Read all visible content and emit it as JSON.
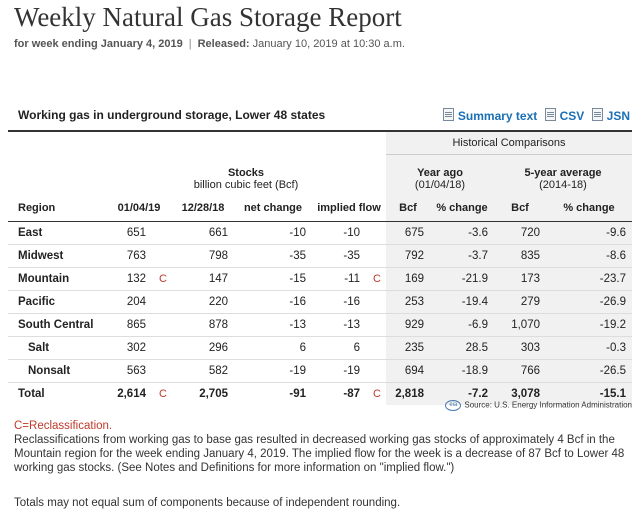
{
  "header": {
    "title": "Weekly Natural Gas Storage Report",
    "week_label": "for week ending January 4, 2019",
    "released_label": "Released:",
    "released_value": "January 10, 2019 at 10:30 a.m."
  },
  "panel": {
    "title": "Working gas in underground storage, Lower 48 states",
    "links": [
      "Summary text",
      "CSV",
      "JSN"
    ]
  },
  "table": {
    "historical_label": "Historical Comparisons",
    "stocks_title": "Stocks",
    "stocks_sub": "billion cubic feet (Bcf)",
    "yearago_title": "Year ago",
    "yearago_sub": "(01/04/18)",
    "fiveyr_title": "5-year average",
    "fiveyr_sub": "(2014-18)",
    "columns": [
      "Region",
      "01/04/19",
      "12/28/18",
      "net change",
      "implied flow",
      "Bcf",
      "% change",
      "Bcf",
      "% change"
    ],
    "rows": [
      {
        "region": "East",
        "cur": "651",
        "cur_r": "",
        "prev": "661",
        "net": "-10",
        "flow": "-10",
        "flow_r": "",
        "ya_bcf": "675",
        "ya_pct": "-3.6",
        "fy_bcf": "720",
        "fy_pct": "-9.6"
      },
      {
        "region": "Midwest",
        "cur": "763",
        "cur_r": "",
        "prev": "798",
        "net": "-35",
        "flow": "-35",
        "flow_r": "",
        "ya_bcf": "792",
        "ya_pct": "-3.7",
        "fy_bcf": "835",
        "fy_pct": "-8.6"
      },
      {
        "region": "Mountain",
        "cur": "132",
        "cur_r": "C",
        "prev": "147",
        "net": "-15",
        "flow": "-11",
        "flow_r": "C",
        "ya_bcf": "169",
        "ya_pct": "-21.9",
        "fy_bcf": "173",
        "fy_pct": "-23.7"
      },
      {
        "region": "Pacific",
        "cur": "204",
        "cur_r": "",
        "prev": "220",
        "net": "-16",
        "flow": "-16",
        "flow_r": "",
        "ya_bcf": "253",
        "ya_pct": "-19.4",
        "fy_bcf": "279",
        "fy_pct": "-26.9"
      },
      {
        "region": "South Central",
        "cur": "865",
        "cur_r": "",
        "prev": "878",
        "net": "-13",
        "flow": "-13",
        "flow_r": "",
        "ya_bcf": "929",
        "ya_pct": "-6.9",
        "fy_bcf": "1,070",
        "fy_pct": "-19.2"
      },
      {
        "region": "Salt",
        "cur": "302",
        "cur_r": "",
        "prev": "296",
        "net": "6",
        "flow": "6",
        "flow_r": "",
        "ya_bcf": "235",
        "ya_pct": "28.5",
        "fy_bcf": "303",
        "fy_pct": "-0.3"
      },
      {
        "region": "Nonsalt",
        "cur": "563",
        "cur_r": "",
        "prev": "582",
        "net": "-19",
        "flow": "-19",
        "flow_r": "",
        "ya_bcf": "694",
        "ya_pct": "-18.9",
        "fy_bcf": "766",
        "fy_pct": "-26.5"
      },
      {
        "region": "Total",
        "cur": "2,614",
        "cur_r": "C",
        "prev": "2,705",
        "net": "-91",
        "flow": "-87",
        "flow_r": "C",
        "ya_bcf": "2,818",
        "ya_pct": "-7.2",
        "fy_bcf": "3,078",
        "fy_pct": "-15.1"
      }
    ]
  },
  "source": "Source:  U.S. Energy Information Administration",
  "source_logo": "eia",
  "notes": {
    "reclass": "C=Reclassification.",
    "text": "Reclassifications from working gas to base gas resulted in decreased working gas stocks of approximately 4 Bcf in the Mountain region for the week ending January 4, 2019. The implied flow for the week is a decrease of 87 Bcf to Lower 48 working gas stocks. (See Notes and Definitions for more information on \"implied flow.\")",
    "rounding": "Totals may not equal sum of components because of independent rounding."
  }
}
